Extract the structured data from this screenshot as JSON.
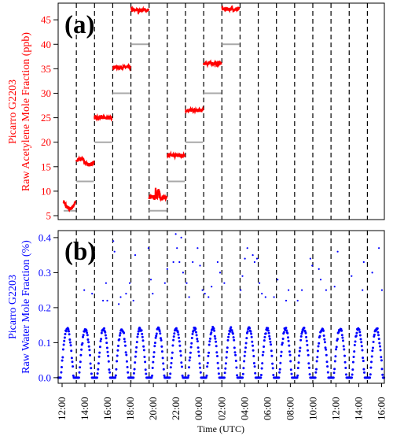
{
  "colors": {
    "panel_a": "#ff0000",
    "panel_b": "#0000ff",
    "reference": "#a9a9a9",
    "divider": "#000000"
  },
  "xlabel": "Time (UTC)",
  "x_ticks": [
    "12:00",
    "14:00",
    "16:00",
    "18:00",
    "20:00",
    "22:00",
    "00:00",
    "02:00",
    "04:00",
    "06:00",
    "08:00",
    "10:00",
    "12:00",
    "14:00",
    "16:00"
  ],
  "chart_data": [
    {
      "type": "line",
      "panel": "(a)",
      "ylabel_line1": "Picarro G2203",
      "ylabel_line2": "Raw Acetylene Mole Fraction (ppb)",
      "xlim_hours": [
        12,
        65.8
      ],
      "ylim": [
        4.2,
        48.4
      ],
      "y_ticks": [
        5,
        10,
        15,
        20,
        25,
        30,
        35,
        40,
        45
      ],
      "grid": false,
      "dividers_hours": [
        15,
        18,
        21,
        24,
        27,
        30,
        33,
        36,
        39,
        42,
        45,
        48,
        51,
        54,
        57,
        60,
        63
      ],
      "steps": [
        {
          "start": 12.9,
          "end": 14.9,
          "measured": 7.5,
          "reference": 6
        },
        {
          "start": 15,
          "end": 17.9,
          "measured": 16.0,
          "reference": 12
        },
        {
          "start": 18,
          "end": 20.9,
          "measured": 25.0,
          "reference": 20
        },
        {
          "start": 21,
          "end": 23.9,
          "measured": 35.3,
          "reference": 30
        },
        {
          "start": 24,
          "end": 26.9,
          "measured": 47.0,
          "reference": 40
        },
        {
          "start": 27,
          "end": 29.9,
          "measured": 8.7,
          "reference": 6
        },
        {
          "start": 30,
          "end": 32.9,
          "measured": 17.3,
          "reference": 12
        },
        {
          "start": 33,
          "end": 35.9,
          "measured": 26.5,
          "reference": 20
        },
        {
          "start": 36,
          "end": 38.9,
          "measured": 36.1,
          "reference": 30
        },
        {
          "start": 39,
          "end": 41.9,
          "measured": 47.2,
          "reference": 40
        }
      ]
    },
    {
      "type": "scatter",
      "panel": "(b)",
      "ylabel_line1": "Picarro G2203",
      "ylabel_line2": "Raw Water Mole Fraction (%)",
      "xlim_hours": [
        12,
        65.8
      ],
      "ylim": [
        -0.016,
        0.42
      ],
      "y_ticks": [
        0.0,
        0.1,
        0.2,
        0.3,
        0.4
      ],
      "grid": false,
      "dividers_hours": [
        15,
        18,
        21,
        24,
        27,
        30,
        33,
        36,
        39,
        42,
        45,
        48,
        51,
        54,
        57,
        60,
        63
      ],
      "cycle_peak": 0.14,
      "outliers": [
        [
          17.6,
          0.24
        ],
        [
          19.9,
          0.27
        ],
        [
          20.1,
          0.22
        ],
        [
          21.1,
          0.39
        ],
        [
          21.3,
          0.36
        ],
        [
          22.0,
          0.21
        ],
        [
          22.3,
          0.23
        ],
        [
          23.2,
          0.24
        ],
        [
          23.8,
          0.27
        ],
        [
          24.4,
          0.22
        ],
        [
          24.7,
          0.35
        ],
        [
          26.9,
          0.37
        ],
        [
          27.3,
          0.28
        ],
        [
          27.6,
          0.24
        ],
        [
          30.0,
          0.31
        ],
        [
          31.0,
          0.33
        ],
        [
          31.4,
          0.41
        ],
        [
          31.6,
          0.37
        ],
        [
          32.0,
          0.33
        ],
        [
          32.3,
          0.4
        ],
        [
          32.6,
          0.3
        ],
        [
          33.2,
          0.27
        ],
        [
          33.6,
          0.23
        ],
        [
          34.2,
          0.33
        ],
        [
          35.0,
          0.37
        ],
        [
          35.4,
          0.32
        ],
        [
          35.8,
          0.25
        ],
        [
          36.2,
          0.24
        ],
        [
          36.8,
          0.23
        ],
        [
          37.3,
          0.26
        ],
        [
          38.3,
          0.33
        ],
        [
          38.7,
          0.3
        ],
        [
          39.4,
          0.27
        ],
        [
          42.1,
          0.25
        ],
        [
          42.4,
          0.29
        ],
        [
          42.8,
          0.34
        ],
        [
          43.2,
          0.37
        ],
        [
          44.1,
          0.35
        ],
        [
          44.4,
          0.33
        ],
        [
          45.2,
          0.27
        ],
        [
          45.6,
          0.24
        ],
        [
          47.6,
          0.23
        ],
        [
          48.2,
          0.28
        ],
        [
          49.6,
          0.22
        ],
        [
          50.0,
          0.25
        ],
        [
          51.5,
          0.22
        ],
        [
          52.2,
          0.25
        ],
        [
          53.6,
          0.34
        ],
        [
          53.9,
          0.32
        ],
        [
          55.0,
          0.31
        ],
        [
          56.2,
          0.25
        ],
        [
          57.6,
          0.26
        ],
        [
          58.1,
          0.36
        ],
        [
          60.4,
          0.29
        ],
        [
          62.2,
          0.25
        ],
        [
          62.4,
          0.33
        ],
        [
          64.9,
          0.37
        ],
        [
          65.4,
          0.25
        ],
        [
          19.4,
          0.22
        ],
        [
          16.3,
          0.25
        ],
        [
          44.8,
          0.34
        ],
        [
          46.2,
          0.23
        ],
        [
          55.3,
          0.28
        ],
        [
          63.8,
          0.3
        ],
        [
          29.6,
          0.27
        ]
      ]
    }
  ]
}
